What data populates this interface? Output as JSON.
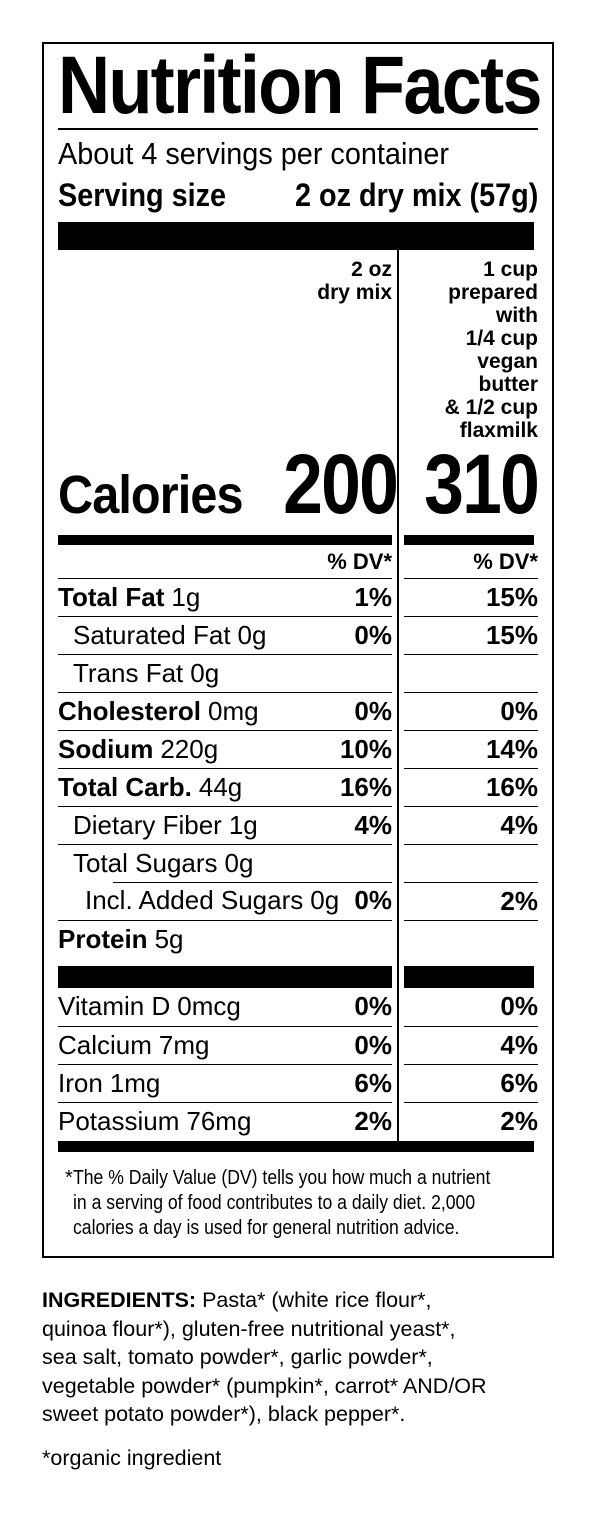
{
  "colors": {
    "ink": "#000000",
    "background": "#ffffff"
  },
  "label": {
    "title": "Nutrition Facts",
    "servings_per_container": "About 4 servings per container",
    "serving_size": {
      "label": "Serving size",
      "value": "2 oz dry mix (57g)"
    },
    "columns": {
      "dry": "2 oz\ndry mix",
      "prepared": "1 cup\nprepared\nwith\n1/4 cup\nvegan\nbutter\n& 1/2 cup\nflaxmilk"
    },
    "calories": {
      "label": "Calories",
      "dry": "200",
      "prepared": "310"
    },
    "dv_header_dry": "% DV*",
    "dv_header_prepared": "% DV*",
    "rows": [
      {
        "name": "Total Fat",
        "amount": "1g",
        "dv_dry": "1%",
        "dv_prepared": "15%"
      },
      {
        "name": "Saturated Fat",
        "amount": "0g",
        "dv_dry": "0%",
        "dv_prepared": "15%"
      },
      {
        "name": "Trans Fat",
        "amount": "0g",
        "dv_dry": "",
        "dv_prepared": ""
      },
      {
        "name": "Cholesterol",
        "amount": "0mg",
        "dv_dry": "0%",
        "dv_prepared": "0%"
      },
      {
        "name": "Sodium",
        "amount": "220g",
        "dv_dry": "10%",
        "dv_prepared": "14%"
      },
      {
        "name": "Total Carb.",
        "amount": "44g",
        "dv_dry": "16%",
        "dv_prepared": "16%"
      },
      {
        "name": "Dietary Fiber",
        "amount": "1g",
        "dv_dry": "4%",
        "dv_prepared": "4%"
      },
      {
        "name": "Total Sugars",
        "amount": "0g",
        "dv_dry": "",
        "dv_prepared": ""
      },
      {
        "name": "Incl. Added Sugars",
        "amount": "0g",
        "dv_dry": "0%",
        "dv_prepared": "2%"
      },
      {
        "name": "Protein",
        "amount": "5g",
        "dv_dry": "",
        "dv_prepared": ""
      }
    ],
    "vitamins": [
      {
        "name": "Vitamin D",
        "amount": "0mcg",
        "dv_dry": "0%",
        "dv_prepared": "0%"
      },
      {
        "name": "Calcium",
        "amount": "7mg",
        "dv_dry": "0%",
        "dv_prepared": "4%"
      },
      {
        "name": "Iron",
        "amount": "1mg",
        "dv_dry": "6%",
        "dv_prepared": "6%"
      },
      {
        "name": "Potassium",
        "amount": "76mg",
        "dv_dry": "2%",
        "dv_prepared": "2%"
      }
    ],
    "footnote": {
      "symbol": "*",
      "text": "The % Daily Value (DV) tells you how much a nutrient\nin a serving of food contributes to a daily diet. 2,000\ncalories a day is used for general nutrition advice."
    }
  },
  "ingredients": {
    "label": "INGREDIENTS:",
    "text": " Pasta* (white rice flour*,\nquinoa flour*), gluten-free nutritional yeast*,\nsea salt, tomato powder*, garlic powder*,\nvegetable powder* (pumpkin*, carrot* AND/OR\nsweet potato powder*), black pepper*.",
    "organic_note": "*organic ingredient"
  }
}
